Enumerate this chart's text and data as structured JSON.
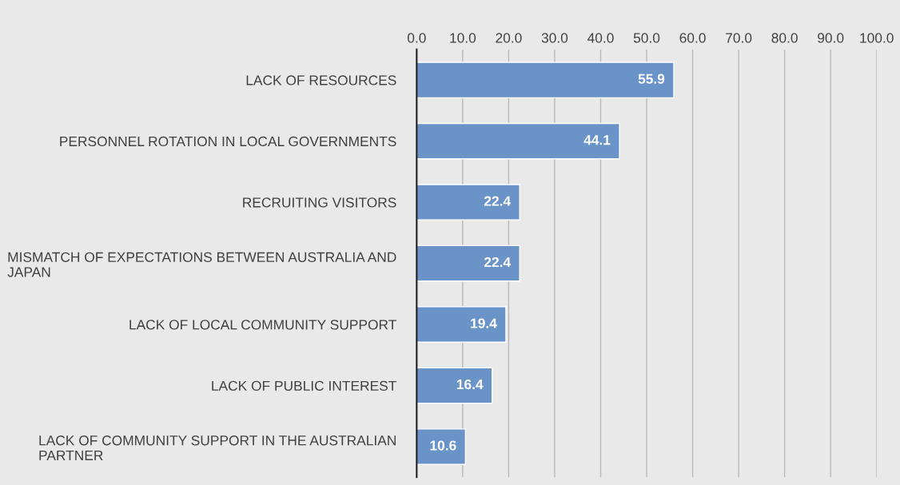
{
  "chart_data": {
    "type": "bar",
    "orientation": "horizontal",
    "categories": [
      "LACK OF RESOURCES",
      "PERSONNEL ROTATION IN LOCAL GOVERNMENTS",
      "RECRUITING VISITORS",
      "MISMATCH OF EXPECTATIONS BETWEEN AUSTRALIA AND\nJAPAN",
      "LACK OF LOCAL COMMUNITY SUPPORT",
      "LACK OF PUBLIC INTEREST",
      "LACK OF COMMUNITY SUPPORT IN THE AUSTRALIAN\nPARTNER"
    ],
    "values": [
      55.9,
      44.1,
      22.4,
      22.4,
      19.4,
      16.4,
      10.6
    ],
    "color": "#6a93c8",
    "xlim": [
      0,
      100
    ],
    "xticks": [
      {
        "value": 0,
        "label": "0.0"
      },
      {
        "value": 10,
        "label": "10.0"
      },
      {
        "value": 20,
        "label": "20.0"
      },
      {
        "value": 30,
        "label": "30.0"
      },
      {
        "value": 40,
        "label": "40.0"
      },
      {
        "value": 50,
        "label": "50.0"
      },
      {
        "value": 60,
        "label": "60.0"
      },
      {
        "value": 70,
        "label": "70.0"
      },
      {
        "value": 80,
        "label": "80.0"
      },
      {
        "value": 90,
        "label": "90.0"
      },
      {
        "value": 100,
        "label": "100.0"
      }
    ],
    "grid": "x",
    "data_labels": true
  }
}
